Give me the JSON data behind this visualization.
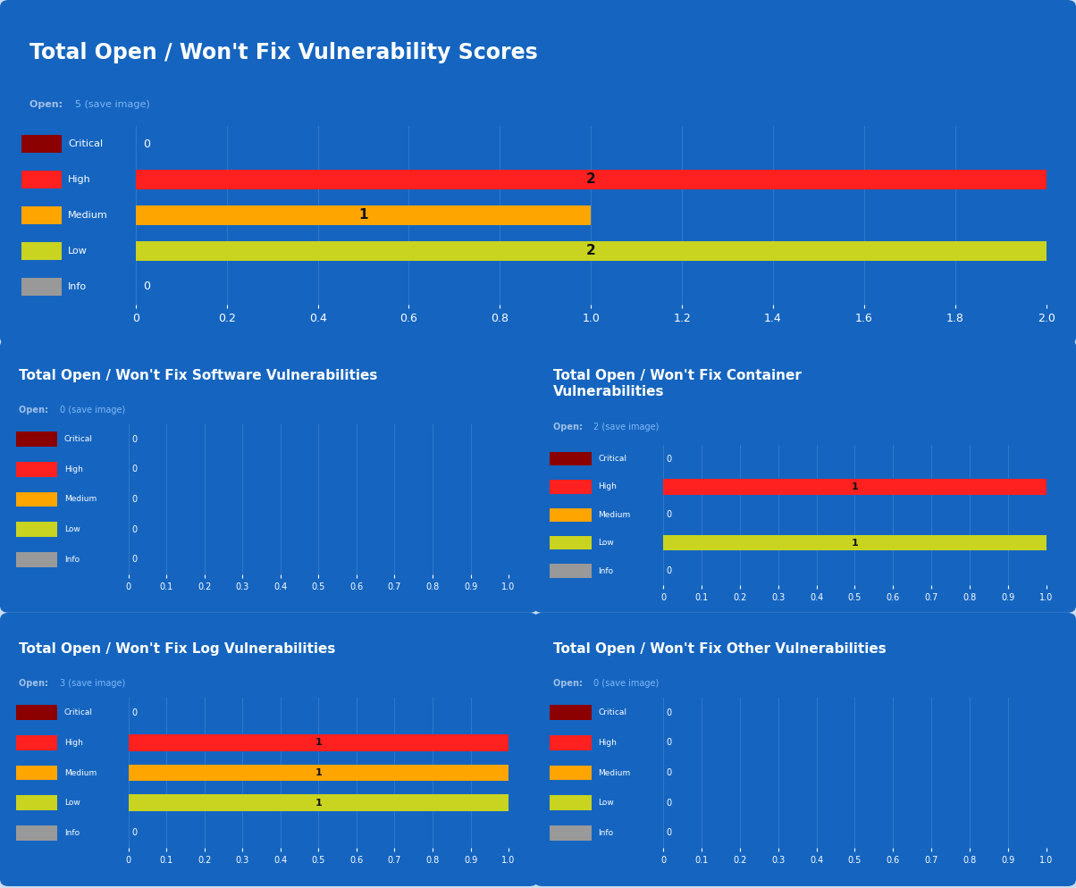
{
  "bg_outer": "#cddcee",
  "bg_panel": "#1565c0",
  "grid_color": "#3d80cc",
  "title_color": "#ffffff",
  "subtitle_prefix_color": "#a0c0e8",
  "open_num_color": "#80b8f8",
  "tick_color": "#ffffff",
  "bar_label_color": "#111111",
  "zero_label_color": "#ffffff",
  "categories": [
    "Critical",
    "High",
    "Medium",
    "Low",
    "Info"
  ],
  "colors": [
    "#8b0000",
    "#ff2020",
    "#ffa500",
    "#c8d420",
    "#999999"
  ],
  "panels": [
    {
      "title": "Total Open / Won't Fix Vulnerability Scores",
      "subtitle_open": "5",
      "values": [
        0,
        2,
        1,
        2,
        0
      ],
      "xlim": 2.0,
      "xticks": [
        0.0,
        0.2,
        0.4,
        0.6,
        0.8,
        1.0,
        1.2,
        1.4,
        1.6,
        1.8,
        2.0
      ],
      "xtick_labels": [
        "0",
        "0.2",
        "0.4",
        "0.6",
        "0.8",
        "1.0",
        "1.2",
        "1.4",
        "1.6",
        "1.8",
        "2.0"
      ]
    },
    {
      "title": "Total Open / Won't Fix Software Vulnerabilities",
      "subtitle_open": "0",
      "values": [
        0,
        0,
        0,
        0,
        0
      ],
      "xlim": 1.0,
      "xticks": [
        0.0,
        0.1,
        0.2,
        0.3,
        0.4,
        0.5,
        0.6,
        0.7,
        0.8,
        0.9,
        1.0
      ],
      "xtick_labels": [
        "0",
        "0.1",
        "0.2",
        "0.3",
        "0.4",
        "0.5",
        "0.6",
        "0.7",
        "0.8",
        "0.9",
        "1.0"
      ]
    },
    {
      "title": "Total Open / Won't Fix Container\nVulnerabilities",
      "subtitle_open": "2",
      "values": [
        0,
        1,
        0,
        1,
        0
      ],
      "xlim": 1.0,
      "xticks": [
        0.0,
        0.1,
        0.2,
        0.3,
        0.4,
        0.5,
        0.6,
        0.7,
        0.8,
        0.9,
        1.0
      ],
      "xtick_labels": [
        "0",
        "0.1",
        "0.2",
        "0.3",
        "0.4",
        "0.5",
        "0.6",
        "0.7",
        "0.8",
        "0.9",
        "1.0"
      ]
    },
    {
      "title": "Total Open / Won't Fix Log Vulnerabilities",
      "subtitle_open": "3",
      "values": [
        0,
        1,
        1,
        1,
        0
      ],
      "xlim": 1.0,
      "xticks": [
        0.0,
        0.1,
        0.2,
        0.3,
        0.4,
        0.5,
        0.6,
        0.7,
        0.8,
        0.9,
        1.0
      ],
      "xtick_labels": [
        "0",
        "0.1",
        "0.2",
        "0.3",
        "0.4",
        "0.5",
        "0.6",
        "0.7",
        "0.8",
        "0.9",
        "1.0"
      ]
    },
    {
      "title": "Total Open / Won't Fix Other Vulnerabilities",
      "subtitle_open": "0",
      "values": [
        0,
        0,
        0,
        0,
        0
      ],
      "xlim": 1.0,
      "xticks": [
        0.0,
        0.1,
        0.2,
        0.3,
        0.4,
        0.5,
        0.6,
        0.7,
        0.8,
        0.9,
        1.0
      ],
      "xtick_labels": [
        "0",
        "0.1",
        "0.2",
        "0.3",
        "0.4",
        "0.5",
        "0.6",
        "0.7",
        "0.8",
        "0.9",
        "1.0"
      ]
    }
  ]
}
